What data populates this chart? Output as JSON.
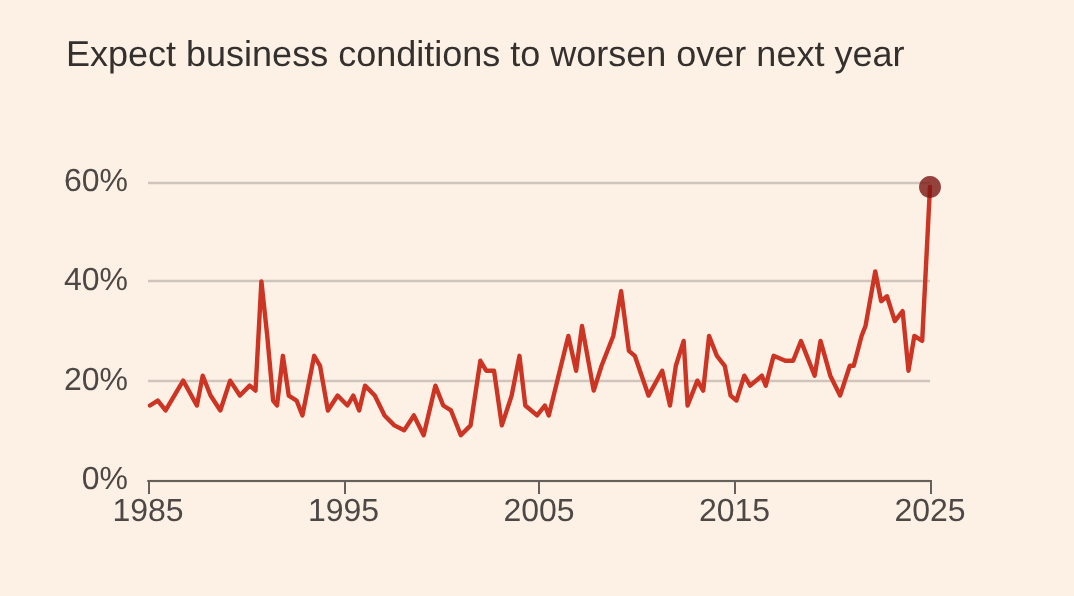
{
  "chart_data": {
    "type": "line",
    "title": "Expect business conditions to worsen over next year",
    "xlim": [
      1985,
      2025
    ],
    "xticks": [
      1985,
      1995,
      2005,
      2015,
      2025
    ],
    "ylim": [
      0,
      60
    ],
    "yticks": [
      {
        "value": 0,
        "label": "0%"
      },
      {
        "value": 20,
        "label": "20%"
      },
      {
        "value": 40,
        "label": "40%"
      },
      {
        "value": 60,
        "label": "60%"
      }
    ],
    "grid": "y",
    "marker": "none",
    "line_style": "solid",
    "series": [
      {
        "color": "#cc3424",
        "x": [
          1985.1,
          1985.5,
          1985.9,
          1986.8,
          1987.5,
          1987.8,
          1988.2,
          1988.7,
          1989.2,
          1989.7,
          1990.2,
          1990.5,
          1990.8,
          1991.1,
          1991.4,
          1991.6,
          1991.9,
          1992.2,
          1992.6,
          1992.9,
          1993.5,
          1993.8,
          1994.2,
          1994.7,
          1995.2,
          1995.5,
          1995.8,
          1996.1,
          1996.6,
          1997.1,
          1997.6,
          1998.1,
          1998.6,
          1999.1,
          1999.7,
          2000.1,
          2000.5,
          2001.0,
          2001.5,
          2002.0,
          2002.3,
          2002.7,
          2003.1,
          2003.6,
          2004.0,
          2004.3,
          2004.9,
          2005.3,
          2005.5,
          2006.0,
          2006.5,
          2006.9,
          2007.2,
          2007.8,
          2008.2,
          2008.8,
          2009.2,
          2009.6,
          2009.9,
          2010.6,
          2011.3,
          2011.7,
          2012.0,
          2012.4,
          2012.6,
          2013.1,
          2013.4,
          2013.7,
          2014.1,
          2014.5,
          2014.8,
          2015.1,
          2015.5,
          2015.8,
          2016.4,
          2016.6,
          2017.0,
          2017.6,
          2018.0,
          2018.4,
          2018.7,
          2019.1,
          2019.4,
          2019.9,
          2020.4,
          2020.9,
          2021.1,
          2021.5,
          2021.7,
          2022.2,
          2022.5,
          2022.8,
          2023.2,
          2023.6,
          2023.9,
          2024.2,
          2024.6,
          2025.0
        ],
        "values": [
          15,
          16,
          14,
          20,
          15,
          21,
          17,
          14,
          20,
          17,
          19,
          18,
          40,
          29,
          16,
          15,
          25,
          17,
          16,
          13,
          25,
          23,
          14,
          17,
          15,
          17,
          14,
          19,
          17,
          13,
          11,
          10,
          13,
          9,
          19,
          15,
          14,
          9,
          11,
          24,
          22,
          22,
          11,
          17,
          25,
          15,
          13,
          15,
          13,
          21,
          29,
          22,
          31,
          18,
          23,
          29,
          38,
          26,
          25,
          17,
          22,
          15,
          23,
          28,
          15,
          20,
          18,
          29,
          25,
          23,
          17,
          16,
          21,
          19,
          21,
          19,
          25,
          24,
          24,
          28,
          25,
          21,
          28,
          21,
          17,
          23,
          23,
          29,
          31,
          42,
          36,
          37,
          32,
          34,
          22,
          29,
          28,
          59
        ]
      },
      {
        "type": "scatter",
        "color": "#7a1712",
        "marker": "circle",
        "x": [
          2025.0
        ],
        "values": [
          59
        ]
      }
    ]
  }
}
